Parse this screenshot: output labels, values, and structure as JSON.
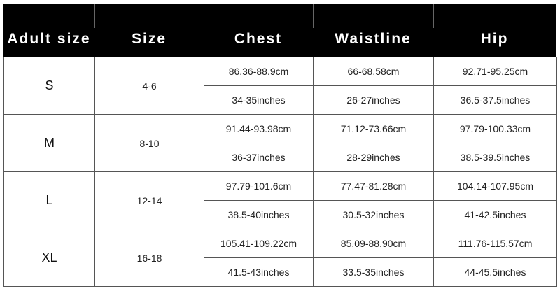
{
  "headers": [
    "Adult size",
    "Size",
    "Chest",
    "Waistline",
    "Hip"
  ],
  "rows": [
    {
      "adult": "S",
      "size": "4-6",
      "chest_cm": "86.36-88.9cm",
      "chest_in": "34-35inches",
      "waist_cm": "66-68.58cm",
      "waist_in": "26-27inches",
      "hip_cm": "92.71-95.25cm",
      "hip_in": "36.5-37.5inches"
    },
    {
      "adult": "M",
      "size": "8-10",
      "chest_cm": "91.44-93.98cm",
      "chest_in": "36-37inches",
      "waist_cm": "71.12-73.66cm",
      "waist_in": "28-29inches",
      "hip_cm": "97.79-100.33cm",
      "hip_in": "38.5-39.5inches"
    },
    {
      "adult": "L",
      "size": "12-14",
      "chest_cm": "97.79-101.6cm",
      "chest_in": "38.5-40inches",
      "waist_cm": "77.47-81.28cm",
      "waist_in": "30.5-32inches",
      "hip_cm": "104.14-107.95cm",
      "hip_in": "41-42.5inches"
    },
    {
      "adult": "XL",
      "size": "16-18",
      "chest_cm": "105.41-109.22cm",
      "chest_in": "41.5-43inches",
      "waist_cm": "85.09-88.90cm",
      "waist_in": "33.5-35inches",
      "hip_cm": "111.76-115.57cm",
      "hip_in": "44-45.5inches"
    }
  ]
}
